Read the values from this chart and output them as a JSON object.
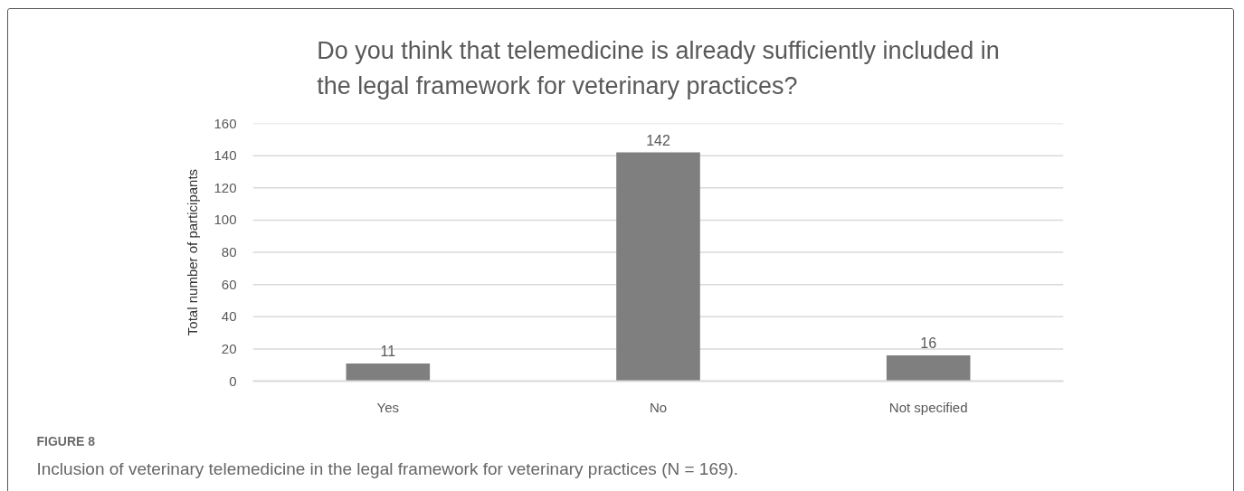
{
  "chart_data": {
    "type": "bar",
    "title": "Do you think that telemedicine is already sufficiently included in\nthe legal framework for veterinary practices?",
    "ylabel": "Total number of participants",
    "categories": [
      "Yes",
      "No",
      "Not specified"
    ],
    "values": [
      11,
      142,
      16
    ],
    "color": "#7f7f7f",
    "ylim": [
      0,
      160
    ],
    "yticks": [
      0,
      20,
      40,
      60,
      80,
      100,
      120,
      140,
      160
    ],
    "grid": "y",
    "data_labels": true,
    "annotations": [
      "FIGURE 8",
      "Inclusion of veterinary telemedicine in the legal framework for veterinary practices (N = 169)."
    ]
  }
}
